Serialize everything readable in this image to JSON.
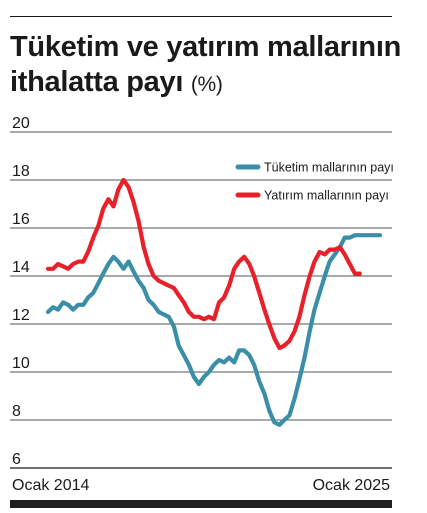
{
  "title": "Tüketim ve yatırım mallarının ithalatta payı",
  "unit": "(%)",
  "colors": {
    "consumer": "#3a8ea8",
    "investment": "#e8202a",
    "axis": "#1a1a1a",
    "grid": "#1a1a1a"
  },
  "chart_data": {
    "type": "line",
    "title": "Tüketim ve yatırım mallarının ithalatta payı (%)",
    "xlabel": "",
    "ylabel": "",
    "x_tick_labels": [
      "Ocak 2014",
      "Ocak 2025"
    ],
    "x_range": [
      "Ocak 2014",
      "Ocak 2025"
    ],
    "x_unit": "years since Ocak 2014",
    "ylim": [
      6,
      20
    ],
    "yticks": [
      6,
      8,
      10,
      12,
      14,
      16,
      18,
      20
    ],
    "grid": true,
    "legend_position": "top-right",
    "series": [
      {
        "name": "Tüketim mallarının payı",
        "color": "#3a8ea8",
        "x": [
          0.0,
          0.17,
          0.33,
          0.5,
          0.67,
          0.83,
          1.0,
          1.17,
          1.33,
          1.5,
          1.67,
          1.83,
          2.0,
          2.17,
          2.33,
          2.5,
          2.67,
          2.83,
          3.0,
          3.17,
          3.33,
          3.5,
          3.67,
          3.83,
          4.0,
          4.17,
          4.33,
          4.5,
          4.67,
          4.83,
          5.0,
          5.17,
          5.33,
          5.5,
          5.67,
          5.83,
          6.0,
          6.17,
          6.33,
          6.5,
          6.67,
          6.83,
          7.0,
          7.17,
          7.33,
          7.5,
          7.67,
          7.83,
          8.0,
          8.17,
          8.33,
          8.5,
          8.67,
          8.83,
          9.0,
          9.17,
          9.33,
          9.5,
          9.67,
          9.83,
          10.0,
          10.17,
          10.33,
          10.5,
          10.67,
          10.83,
          11.0
        ],
        "values": [
          12.5,
          12.7,
          12.6,
          12.9,
          12.8,
          12.6,
          12.8,
          12.8,
          13.1,
          13.3,
          13.7,
          14.1,
          14.5,
          14.8,
          14.6,
          14.3,
          14.6,
          14.2,
          13.8,
          13.5,
          13.0,
          12.8,
          12.5,
          12.4,
          12.3,
          11.9,
          11.1,
          10.7,
          10.3,
          9.8,
          9.5,
          9.8,
          10.0,
          10.3,
          10.5,
          10.4,
          10.6,
          10.4,
          10.9,
          10.9,
          10.7,
          10.3,
          9.6,
          9.1,
          8.4,
          7.9,
          7.8,
          8.0,
          8.2,
          8.9,
          9.7,
          10.6,
          11.7,
          12.6,
          13.3,
          14.0,
          14.6,
          14.9,
          15.2,
          15.6,
          15.6,
          15.7,
          15.7,
          15.7,
          15.7,
          15.7,
          15.7
        ],
        "x_end_values": [
          15.7
        ]
      },
      {
        "name": "Yatırım mallarının payı",
        "color": "#e8202a",
        "x": [
          0.0,
          0.17,
          0.33,
          0.5,
          0.67,
          0.83,
          1.0,
          1.17,
          1.33,
          1.5,
          1.67,
          1.83,
          2.0,
          2.17,
          2.33,
          2.5,
          2.67,
          2.83,
          3.0,
          3.17,
          3.33,
          3.5,
          3.67,
          3.83,
          4.0,
          4.17,
          4.33,
          4.5,
          4.67,
          4.83,
          5.0,
          5.17,
          5.33,
          5.5,
          5.67,
          5.83,
          6.0,
          6.17,
          6.33,
          6.5,
          6.67,
          6.83,
          7.0,
          7.17,
          7.33,
          7.5,
          7.67,
          7.83,
          8.0,
          8.17,
          8.33,
          8.5,
          8.67,
          8.83,
          9.0,
          9.17,
          9.33,
          9.5,
          9.67,
          9.83,
          10.0,
          10.17,
          10.33
        ],
        "values": [
          14.3,
          14.3,
          14.5,
          14.4,
          14.3,
          14.5,
          14.6,
          14.6,
          15.0,
          15.6,
          16.1,
          16.8,
          17.2,
          16.9,
          17.6,
          18.0,
          17.7,
          17.1,
          16.3,
          15.2,
          14.5,
          14.0,
          13.8,
          13.7,
          13.6,
          13.5,
          13.2,
          12.9,
          12.5,
          12.3,
          12.3,
          12.2,
          12.3,
          12.2,
          12.9,
          13.1,
          13.6,
          14.3,
          14.6,
          14.8,
          14.5,
          14.0,
          13.3,
          12.6,
          12.0,
          11.4,
          11.0,
          11.1,
          11.3,
          11.7,
          12.3,
          13.2,
          14.0,
          14.6,
          15.0,
          14.9,
          15.1,
          15.1,
          15.2,
          14.9,
          14.5,
          14.1,
          14.1
        ]
      }
    ]
  }
}
